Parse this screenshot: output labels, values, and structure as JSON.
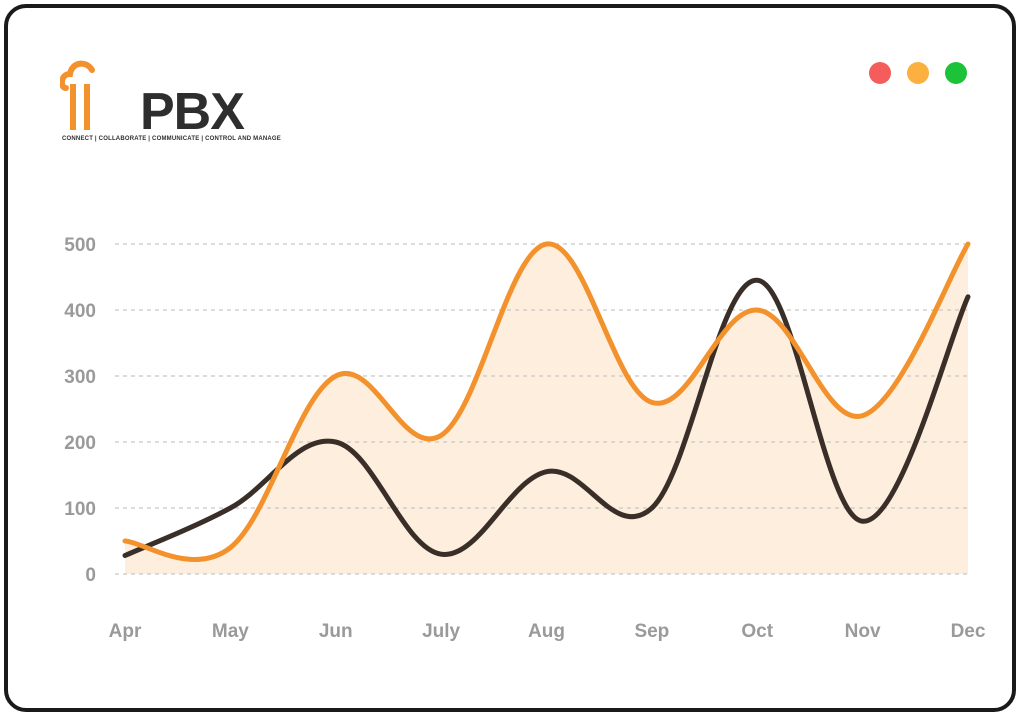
{
  "window": {
    "traffic_lights": [
      {
        "name": "close",
        "color": "#f55c5c"
      },
      {
        "name": "minimize",
        "color": "#fbb040"
      },
      {
        "name": "maximize",
        "color": "#1cc338"
      }
    ]
  },
  "logo": {
    "wordmark": "PBX",
    "tagline": "CONNECT | COLLABORATE | COMMUNICATE | CONTROL AND MANAGE",
    "icon": "cloud-ip-icon",
    "brand_color": "#f3922d"
  },
  "chart_data": {
    "type": "line",
    "categories": [
      "Apr",
      "May",
      "Jun",
      "July",
      "Aug",
      "Sep",
      "Oct",
      "Nov",
      "Dec"
    ],
    "ylim": [
      0,
      500
    ],
    "yticks": [
      0,
      100,
      200,
      300,
      400,
      500
    ],
    "grid": true,
    "series": [
      {
        "color": "#f3922d",
        "fill": "#fdeedd",
        "area": true,
        "values": [
          50,
          40,
          300,
          210,
          500,
          260,
          400,
          240,
          500
        ]
      },
      {
        "color": "#3a2f28",
        "area": false,
        "values": [
          28,
          100,
          200,
          30,
          155,
          100,
          445,
          80,
          420
        ]
      }
    ]
  }
}
